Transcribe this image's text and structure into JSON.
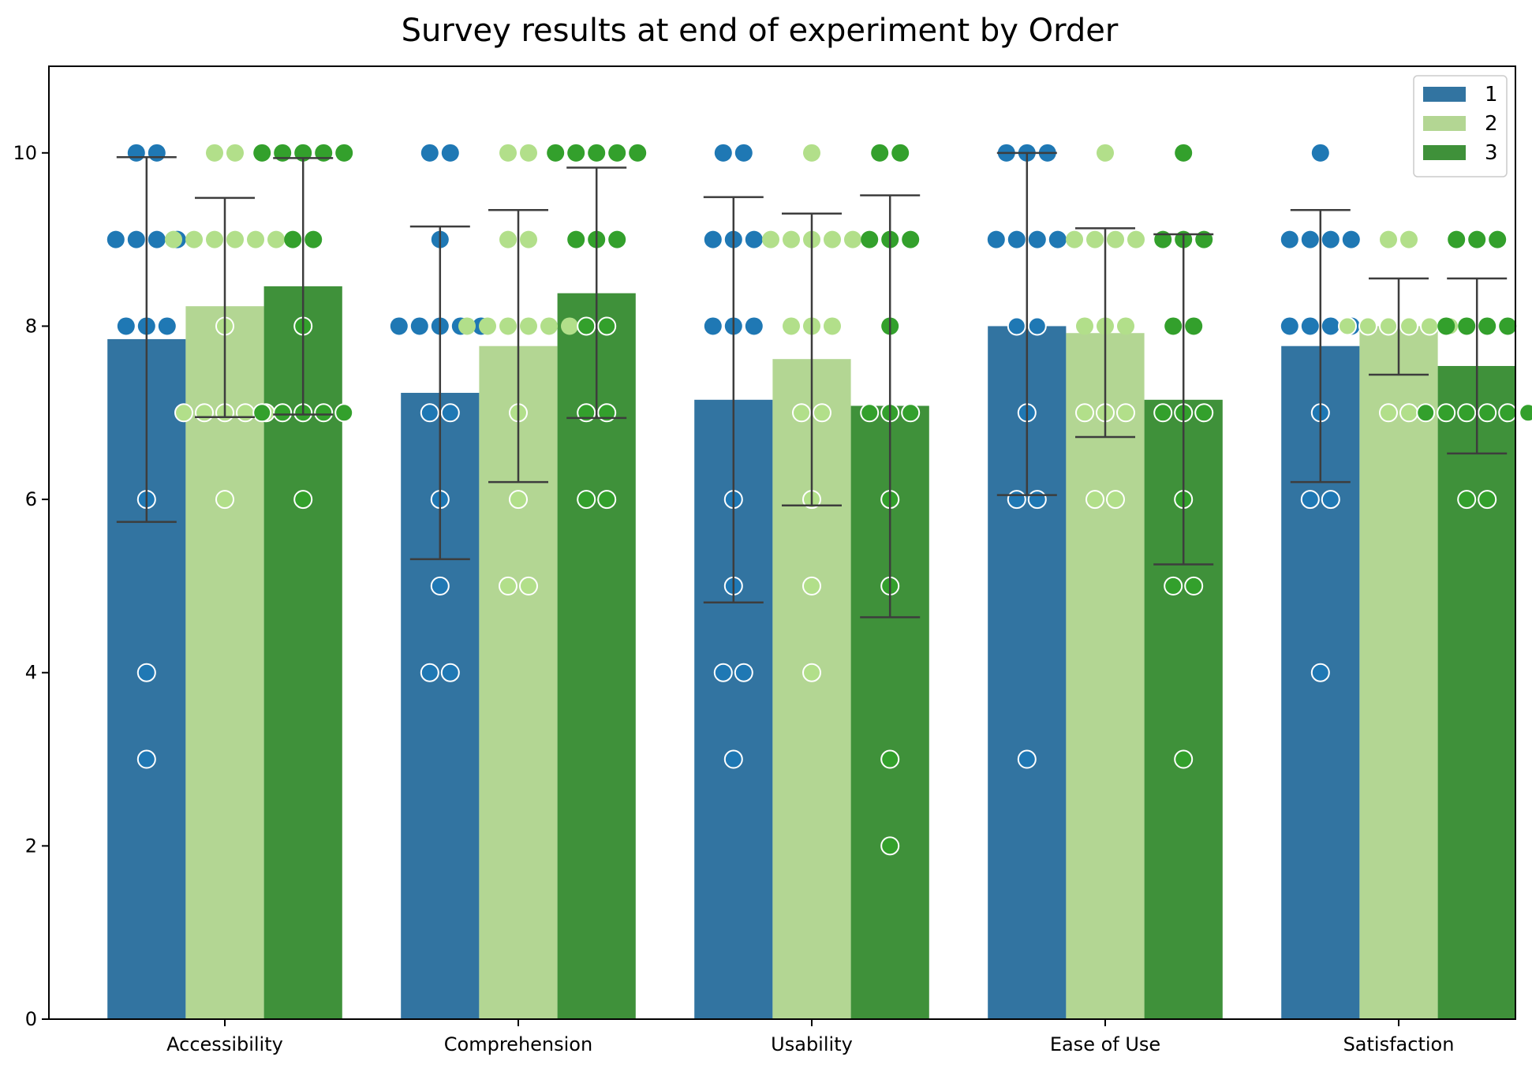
{
  "chart_data": {
    "type": "bar",
    "title": "Survey results at end of experiment by Order",
    "xlabel": "",
    "ylabel": "",
    "ylim": [
      0,
      11
    ],
    "yticks": [
      0,
      2,
      4,
      6,
      8,
      10
    ],
    "grid": false,
    "legend_position": "top-right",
    "categories": [
      "Accessibility",
      "Comprehension",
      "Usability",
      "Ease of Use",
      "Satisfaction"
    ],
    "series": [
      {
        "name": "1",
        "color": "#3274a1",
        "point_color": "#1f78b4",
        "values": [
          7.85,
          7.23,
          7.15,
          8.0,
          7.77
        ],
        "error_low": [
          5.74,
          5.31,
          4.81,
          6.05,
          6.2
        ],
        "error_high": [
          9.95,
          9.15,
          9.49,
          10.0,
          9.34
        ]
      },
      {
        "name": "2",
        "color": "#b3d693",
        "point_color": "#b2df8a",
        "values": [
          8.23,
          7.77,
          7.62,
          7.92,
          8.0
        ],
        "error_low": [
          6.95,
          6.2,
          5.93,
          6.72,
          7.44
        ],
        "error_high": [
          9.48,
          9.34,
          9.3,
          9.13,
          8.55
        ]
      },
      {
        "name": "3",
        "color": "#3f913a",
        "point_color": "#33a02c",
        "values": [
          8.46,
          8.38,
          7.08,
          7.15,
          7.54
        ],
        "error_low": [
          6.98,
          6.94,
          4.64,
          5.25,
          6.53
        ],
        "error_high": [
          9.94,
          9.83,
          9.51,
          9.06,
          8.55
        ]
      }
    ],
    "points": [
      [
        [
          10,
          10,
          9,
          9,
          9,
          9,
          8,
          8,
          8,
          6,
          4,
          3
        ],
        [
          10,
          10,
          9,
          9,
          9,
          9,
          9,
          9,
          8,
          7,
          7,
          7,
          7,
          7,
          6
        ],
        [
          10,
          10,
          10,
          10,
          10,
          9,
          9,
          8,
          7,
          7,
          7,
          7,
          7,
          6
        ]
      ],
      [
        [
          10,
          10,
          9,
          8,
          8,
          8,
          8,
          8,
          7,
          7,
          6,
          5,
          4,
          4
        ],
        [
          10,
          10,
          9,
          9,
          8,
          8,
          8,
          8,
          8,
          8,
          7,
          6,
          5,
          5
        ],
        [
          10,
          10,
          10,
          10,
          10,
          9,
          9,
          9,
          8,
          8,
          7,
          7,
          6,
          6
        ]
      ],
      [
        [
          10,
          10,
          9,
          9,
          9,
          8,
          8,
          8,
          6,
          5,
          4,
          4,
          3
        ],
        [
          10,
          9,
          9,
          9,
          9,
          9,
          8,
          8,
          8,
          7,
          7,
          6,
          5,
          4
        ],
        [
          10,
          10,
          9,
          9,
          9,
          8,
          7,
          7,
          7,
          6,
          5,
          3,
          2
        ]
      ],
      [
        [
          10,
          10,
          10,
          9,
          9,
          9,
          9,
          8,
          8,
          7,
          6,
          6,
          3
        ],
        [
          10,
          9,
          9,
          9,
          9,
          8,
          8,
          8,
          7,
          7,
          7,
          6,
          6
        ],
        [
          10,
          9,
          9,
          9,
          8,
          8,
          7,
          7,
          7,
          6,
          5,
          5,
          3
        ]
      ],
      [
        [
          10,
          9,
          9,
          9,
          9,
          8,
          8,
          8,
          8,
          7,
          6,
          6,
          4
        ],
        [
          9,
          9,
          8,
          8,
          8,
          8,
          8,
          8,
          7,
          7
        ],
        [
          9,
          9,
          9,
          8,
          8,
          8,
          8,
          7,
          7,
          7,
          7,
          7,
          7,
          6,
          6
        ]
      ]
    ]
  }
}
